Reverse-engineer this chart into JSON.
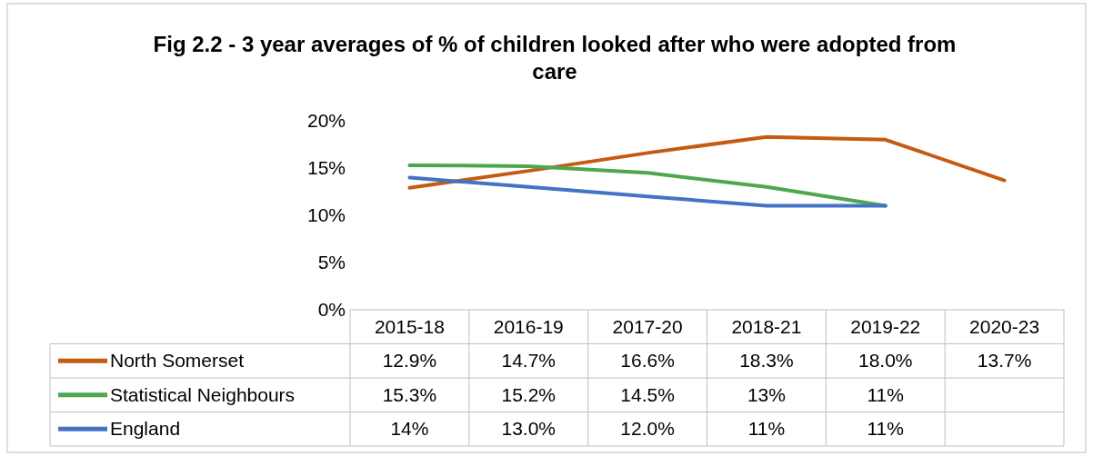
{
  "chart_data": {
    "type": "line",
    "title": "Fig 2.2 - 3 year averages of % of children looked after who were adopted from care",
    "categories": [
      "2015-18",
      "2016-19",
      "2017-20",
      "2018-21",
      "2019-22",
      "2020-23"
    ],
    "series": [
      {
        "name": "North Somerset",
        "color": "#c55a11",
        "values": [
          12.9,
          14.7,
          16.6,
          18.3,
          18.0,
          13.7
        ],
        "value_labels": [
          "12.9%",
          "14.7%",
          "16.6%",
          "18.3%",
          "18.0%",
          "13.7%"
        ]
      },
      {
        "name": "Statistical Neighbours",
        "color": "#4ea74e",
        "values": [
          15.3,
          15.2,
          14.5,
          13,
          11,
          null
        ],
        "value_labels": [
          "15.3%",
          "15.2%",
          "14.5%",
          "13%",
          "11%",
          null
        ]
      },
      {
        "name": "England",
        "color": "#4472c4",
        "values": [
          14,
          13.0,
          12.0,
          11,
          11,
          null
        ],
        "value_labels": [
          "14%",
          "13.0%",
          "12.0%",
          "11%",
          "11%",
          null
        ]
      }
    ],
    "ylim": [
      0,
      20
    ],
    "yticks": [
      {
        "value": 0,
        "label": "0%"
      },
      {
        "value": 5,
        "label": "5%"
      },
      {
        "value": 10,
        "label": "10%"
      },
      {
        "value": 15,
        "label": "15%"
      },
      {
        "value": 20,
        "label": "20%"
      }
    ],
    "legend": "bottom",
    "grid": false,
    "marker": "none",
    "line_style": "solid"
  }
}
